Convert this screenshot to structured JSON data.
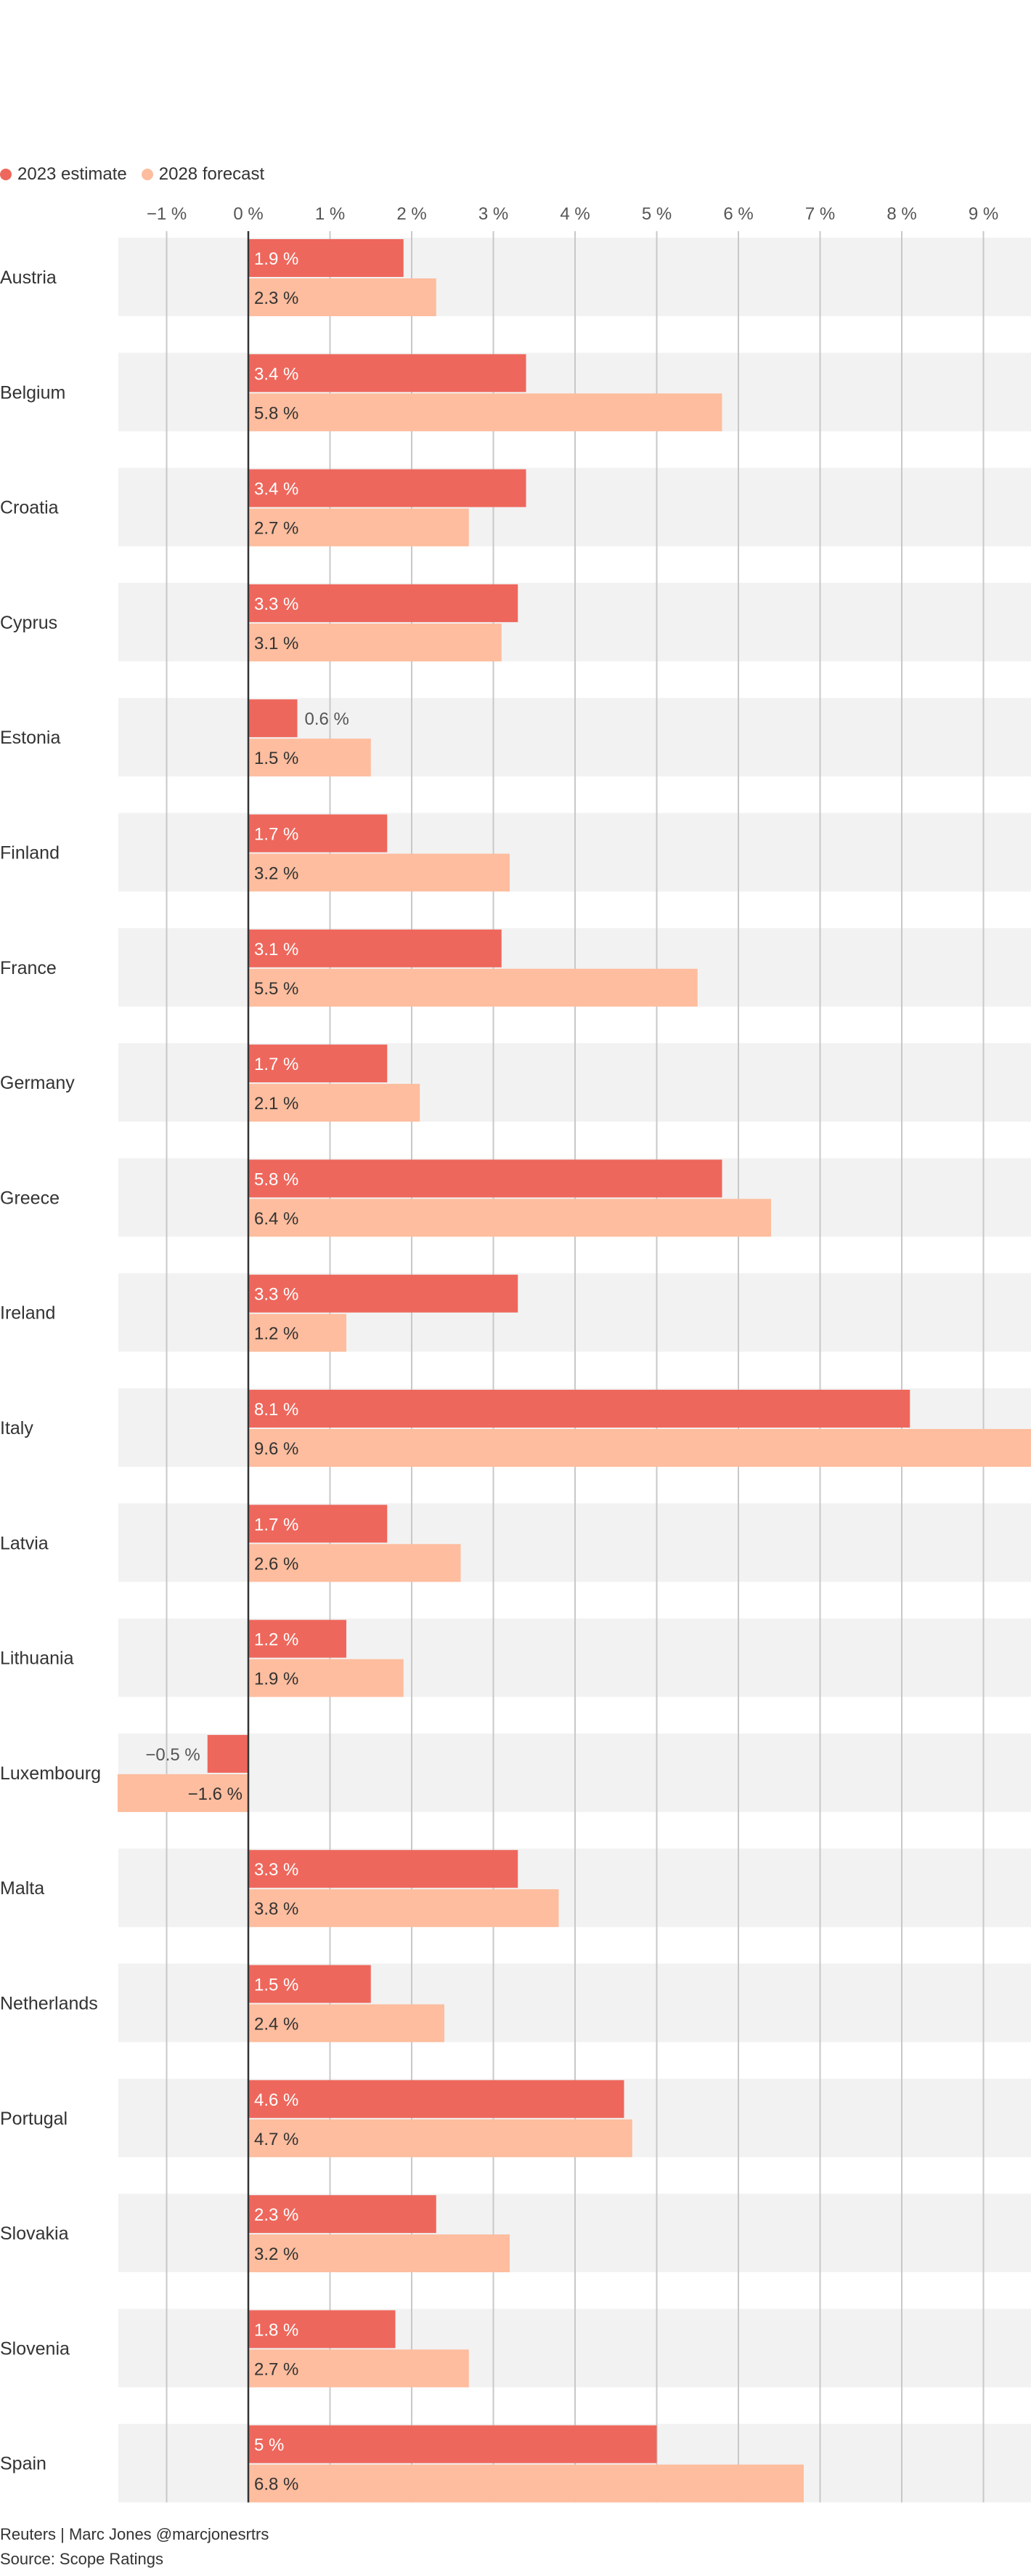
{
  "chart_data": {
    "type": "bar",
    "orientation": "horizontal",
    "title": "",
    "xlabel": "",
    "ylabel": "",
    "xlim": [
      -1.6,
      9.6
    ],
    "ticks": [
      -1,
      0,
      1,
      2,
      3,
      4,
      5,
      6,
      7,
      8,
      9
    ],
    "tick_labels": [
      "−1 %",
      "0 %",
      "1 %",
      "2 %",
      "3 %",
      "4 %",
      "5 %",
      "6 %",
      "7 %",
      "8 %",
      "9 %"
    ],
    "grid": true,
    "legend": [
      {
        "name": "2023 estimate",
        "color": "#ee675c"
      },
      {
        "name": "2028 forecast",
        "color": "#fdbd9e"
      }
    ],
    "categories": [
      "Austria",
      "Belgium",
      "Croatia",
      "Cyprus",
      "Estonia",
      "Finland",
      "France",
      "Germany",
      "Greece",
      "Ireland",
      "Italy",
      "Latvia",
      "Lithuania",
      "Luxembourg",
      "Malta",
      "Netherlands",
      "Portugal",
      "Slovakia",
      "Slovenia",
      "Spain"
    ],
    "series": [
      {
        "name": "2023 estimate",
        "values": [
          1.9,
          3.4,
          3.4,
          3.3,
          0.6,
          1.7,
          3.1,
          1.7,
          5.8,
          3.3,
          8.1,
          1.7,
          1.2,
          -0.5,
          3.3,
          1.5,
          4.6,
          2.3,
          1.8,
          5.0
        ],
        "labels": [
          "1.9 %",
          "3.4 %",
          "3.4 %",
          "3.3 %",
          "0.6 %",
          "1.7 %",
          "3.1 %",
          "1.7 %",
          "5.8 %",
          "3.3 %",
          "8.1 %",
          "1.7 %",
          "1.2 %",
          "−0.5 %",
          "3.3 %",
          "1.5 %",
          "4.6 %",
          "2.3 %",
          "1.8 %",
          "5 %"
        ]
      },
      {
        "name": "2028 forecast",
        "values": [
          2.3,
          5.8,
          2.7,
          3.1,
          1.5,
          3.2,
          5.5,
          2.1,
          6.4,
          1.2,
          9.6,
          2.6,
          1.9,
          -1.6,
          3.8,
          2.4,
          4.7,
          3.2,
          2.7,
          6.8
        ],
        "labels": [
          "2.3 %",
          "5.8 %",
          "2.7 %",
          "3.1 %",
          "1.5 %",
          "3.2 %",
          "5.5 %",
          "2.1 %",
          "6.4 %",
          "1.2 %",
          "9.6 %",
          "2.6 %",
          "1.9 %",
          "−1.6 %",
          "3.8 %",
          "2.4 %",
          "4.7 %",
          "3.2 %",
          "2.7 %",
          "6.8 %"
        ]
      }
    ]
  },
  "footer": {
    "credit": "Reuters | Marc Jones @marcjonesrtrs",
    "source": "Source: Scope Ratings"
  }
}
